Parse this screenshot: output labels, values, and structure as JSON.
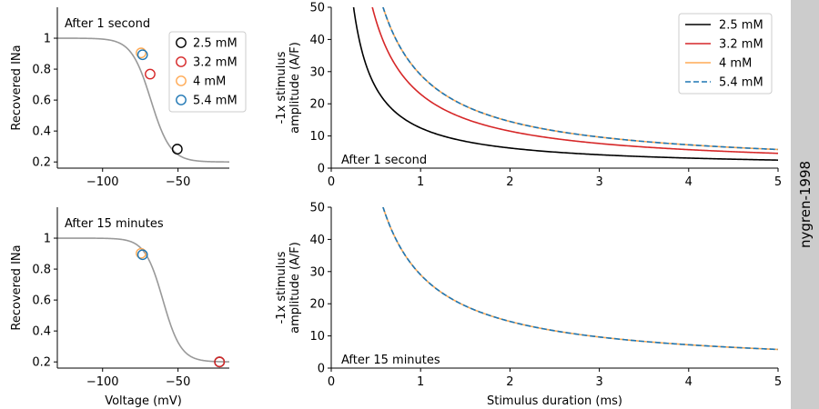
{
  "colors": {
    "mM_2_5": "#000000",
    "mM_3_2": "#d62728",
    "mM_4": "#ffaa55",
    "mM_5_4": "#1f77b4",
    "curve_gray": "#999999",
    "sidebar_bg": "#cccccc"
  },
  "sidebar": {
    "label": "nygren-1998"
  },
  "chart_data": [
    {
      "id": "tl",
      "type": "line+scatter",
      "annotation": "After 1 second",
      "xlabel": "",
      "ylabel": "Recovered INa",
      "xlim": [
        -130,
        -16
      ],
      "ylim": [
        0.16,
        1.2
      ],
      "xticks": [
        -100,
        -50
      ],
      "yticks": [
        0.2,
        0.4,
        0.6,
        0.8,
        1.0
      ],
      "curve": {
        "kind": "sigmoid",
        "v_half": -68,
        "slope": 6.5,
        "min": 0.2,
        "max": 1.0,
        "color": "#999999"
      },
      "legend": {
        "placement": "top-right",
        "entries": [
          "2.5 mM",
          "3.2 mM",
          "4 mM",
          "5.4 mM"
        ],
        "colors": [
          "#000000",
          "#d62728",
          "#ffaa55",
          "#1f77b4"
        ]
      },
      "points": [
        {
          "name": "2.5 mM",
          "x": -50.5,
          "y": 0.283,
          "color": "#000000"
        },
        {
          "name": "3.2 mM",
          "x": -68.5,
          "y": 0.768,
          "color": "#d62728"
        },
        {
          "name": "4 mM",
          "x": -74.5,
          "y": 0.905,
          "color": "#ffaa55"
        },
        {
          "name": "5.4 mM",
          "x": -73.5,
          "y": 0.893,
          "color": "#1f77b4"
        }
      ]
    },
    {
      "id": "bl",
      "type": "line+scatter",
      "annotation": "After 15 minutes",
      "xlabel": "Voltage (mV)",
      "ylabel": "Recovered INa",
      "xlim": [
        -130,
        -16
      ],
      "ylim": [
        0.16,
        1.2
      ],
      "xticks": [
        -100,
        -50
      ],
      "yticks": [
        0.2,
        0.4,
        0.6,
        0.8,
        1.0
      ],
      "curve": {
        "kind": "sigmoid",
        "v_half": -60,
        "slope": 6.0,
        "min": 0.2,
        "max": 1.0,
        "color": "#999999"
      },
      "points": [
        {
          "name": "2.5 mM",
          "x": -22.5,
          "y": 0.2,
          "color": "#000000"
        },
        {
          "name": "3.2 mM",
          "x": -22.5,
          "y": 0.2,
          "color": "#d62728"
        },
        {
          "name": "4 mM",
          "x": -74.5,
          "y": 0.902,
          "color": "#ffaa55"
        },
        {
          "name": "5.4 mM",
          "x": -73.5,
          "y": 0.893,
          "color": "#1f77b4"
        }
      ]
    },
    {
      "id": "tr",
      "type": "line",
      "annotation": "After 1 second",
      "xlabel": "",
      "ylabel": [
        "-1x stimulus",
        "amplitude (A/F)"
      ],
      "xlim": [
        0,
        5
      ],
      "ylim": [
        0,
        50
      ],
      "xticks": [
        0,
        1,
        2,
        3,
        4,
        5
      ],
      "yticks": [
        0,
        10,
        20,
        30,
        40,
        50
      ],
      "legend": {
        "placement": "top-right"
      },
      "series": [
        {
          "name": "2.5 mM",
          "a": 12.5,
          "color": "#000000",
          "dashed": false
        },
        {
          "name": "3.2 mM",
          "a": 23.0,
          "color": "#d62728",
          "dashed": false
        },
        {
          "name": "4 mM",
          "a": 29.0,
          "color": "#ffaa55",
          "dashed": false
        },
        {
          "name": "5.4 mM",
          "a": 29.0,
          "color": "#1f77b4",
          "dashed": true
        }
      ]
    },
    {
      "id": "br",
      "type": "line",
      "annotation": "After 15 minutes",
      "xlabel": "Stimulus duration (ms)",
      "ylabel": [
        "-1x stimulus",
        "amplitude (A/F)"
      ],
      "xlim": [
        0,
        5
      ],
      "ylim": [
        0,
        50
      ],
      "xticks": [
        0,
        1,
        2,
        3,
        4,
        5
      ],
      "yticks": [
        0,
        10,
        20,
        30,
        40,
        50
      ],
      "series": [
        {
          "name": "4 mM",
          "a": 29.0,
          "color": "#ffaa55",
          "dashed": false
        },
        {
          "name": "5.4 mM",
          "a": 29.0,
          "color": "#1f77b4",
          "dashed": true
        }
      ]
    }
  ]
}
